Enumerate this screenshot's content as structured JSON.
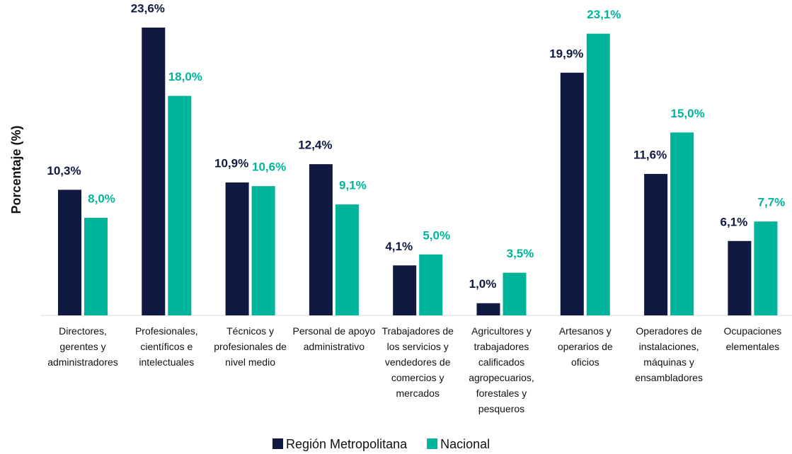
{
  "chart_data": {
    "type": "bar",
    "y_label": "Porcentaje (%)",
    "categories": [
      "Directores, gerentes y administradores",
      "Profesionales, científicos e intelectuales",
      "Técnicos y profesionales de nivel medio",
      "Personal de apoyo administrativo",
      "Trabajadores de los servicios y vendedores de comercios y mercados",
      "Agricultores y trabajadores calificados agropecuarios, forestales y pesqueros",
      "Artesanos y operarios de oficios",
      "Operadores de instalaciones, máquinas y ensambladores",
      "Ocupaciones elementales"
    ],
    "series": [
      {
        "name": "Región Metropolitana",
        "color": "#0f1941",
        "values": [
          10.3,
          23.6,
          10.9,
          12.4,
          4.1,
          1.0,
          19.9,
          11.6,
          6.1
        ],
        "value_labels": [
          "10,3%",
          "23,6%",
          "10,9%",
          "12,4%",
          "4,1%",
          "1,0%",
          "19,9%",
          "11,6%",
          "6,1%"
        ]
      },
      {
        "name": "Nacional",
        "color": "#00b49c",
        "values": [
          8.0,
          18.0,
          10.6,
          9.1,
          5.0,
          3.5,
          23.1,
          15.0,
          7.7
        ],
        "value_labels": [
          "8,0%",
          "18,0%",
          "10,6%",
          "9,1%",
          "5,0%",
          "3,5%",
          "23,1%",
          "15,0%",
          "7,7%"
        ]
      }
    ],
    "legend": "bottom"
  }
}
